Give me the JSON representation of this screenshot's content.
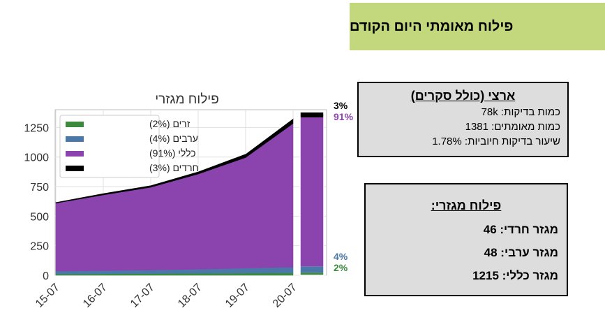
{
  "header": {
    "title": "פילוח מאומתי היום הקודם"
  },
  "national": {
    "title": "ארצי (כולל סקרים)",
    "tests": "כמות בדיקות: 78k",
    "confirmed": "כמות מאומתים: 1381",
    "positive_rate": "שיעור בדיקות חיוביות: 1.78%"
  },
  "sectors": {
    "title": "פילוח מגזרי:",
    "haredi": "מגזר חרדי: 46",
    "arab": "מגזר ערבי: 48",
    "general": "מגזר כללי: 1215"
  },
  "colors": {
    "others": "#3b8a3e",
    "arab": "#4a78a8",
    "general": "#8b44ad",
    "haredi": "#000000"
  },
  "chart_data": {
    "type": "area",
    "title": "פילוח מגזרי",
    "x": [
      "15-07",
      "16-07",
      "17-07",
      "18-07",
      "19-07",
      "20-07"
    ],
    "xtick_labels": [
      "15-07",
      "16-07",
      "17-07",
      "18-07",
      "19-07",
      "20-07"
    ],
    "ylim": [
      0,
      1400
    ],
    "yticks": [
      0,
      250,
      500,
      750,
      1000,
      1250
    ],
    "grid": true,
    "legend_position": "top-left",
    "series": [
      {
        "name": "זרים (2%)",
        "key": "others",
        "values": [
          10,
          12,
          14,
          16,
          18,
          20
        ]
      },
      {
        "name": "ערבים (4%)",
        "key": "arab",
        "values": [
          25,
          27,
          30,
          35,
          42,
          48
        ]
      },
      {
        "name": "כללי (91%)",
        "key": "general",
        "values": [
          575,
          640,
          700,
          805,
          935,
          1215
        ]
      },
      {
        "name": "חרדים (3%)",
        "key": "haredi",
        "values": [
          12,
          18,
          20,
          25,
          35,
          46
        ]
      }
    ],
    "last_bar": {
      "x": "20-07",
      "segments": {
        "others": 22,
        "arab": 53,
        "general": 1260,
        "haredi": 46
      }
    },
    "right_labels": {
      "haredi": "3%",
      "general": "91%",
      "arab": "4%",
      "others": "2%"
    }
  }
}
